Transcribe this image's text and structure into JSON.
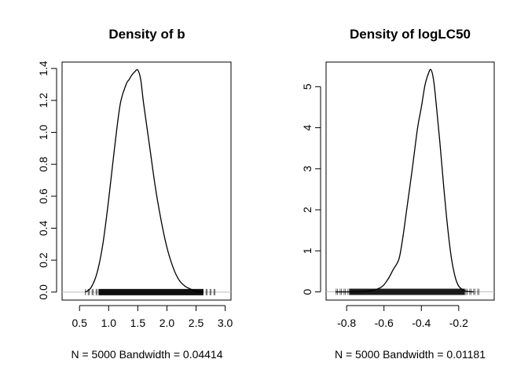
{
  "chart_data": [
    {
      "type": "line",
      "title": "Density of b",
      "subtitle": "N = 5000   Bandwidth = 0.04414",
      "xlim": [
        0.2,
        3.1
      ],
      "ylim": [
        -0.05,
        1.44
      ],
      "xticks": [
        0.5,
        1.0,
        1.5,
        2.0,
        2.5,
        3.0
      ],
      "xtick_labels": [
        "0.5",
        "1.0",
        "1.5",
        "2.0",
        "2.5",
        "3.0"
      ],
      "yticks": [
        0.0,
        0.2,
        0.4,
        0.6,
        0.8,
        1.0,
        1.2,
        1.4
      ],
      "ytick_labels": [
        "0.0",
        "0.2",
        "0.4",
        "0.6",
        "0.8",
        "1.0",
        "1.2",
        "1.4"
      ],
      "rug_range": [
        0.6,
        2.85
      ],
      "baseline_color": "#bebebe",
      "series": [
        {
          "x": [
            0.6,
            0.7,
            0.8,
            0.9,
            1.0,
            1.1,
            1.2,
            1.3,
            1.35,
            1.4,
            1.45,
            1.5,
            1.55,
            1.6,
            1.7,
            1.8,
            1.9,
            2.0,
            2.1,
            2.2,
            2.3,
            2.4,
            2.5,
            2.6
          ],
          "y": [
            0.0,
            0.03,
            0.12,
            0.3,
            0.58,
            0.9,
            1.18,
            1.3,
            1.33,
            1.36,
            1.38,
            1.39,
            1.33,
            1.18,
            0.92,
            0.66,
            0.45,
            0.28,
            0.16,
            0.08,
            0.04,
            0.02,
            0.005,
            0.0
          ]
        }
      ]
    },
    {
      "type": "line",
      "title": "Density of logLC50",
      "subtitle": "N = 5000   Bandwidth = 0.01181",
      "xlim": [
        -0.91,
        -0.01
      ],
      "ylim": [
        -0.2,
        5.6
      ],
      "xticks": [
        -0.8,
        -0.6,
        -0.4,
        -0.2
      ],
      "xtick_labels": [
        "-0.8",
        "-0.6",
        "-0.4",
        "-0.2"
      ],
      "yticks": [
        0,
        1,
        2,
        3,
        4,
        5
      ],
      "ytick_labels": [
        "0",
        "1",
        "2",
        "3",
        "4",
        "5"
      ],
      "rug_range": [
        -0.86,
        -0.09
      ],
      "baseline_color": "#bebebe",
      "series": [
        {
          "x": [
            -0.86,
            -0.7,
            -0.62,
            -0.58,
            -0.55,
            -0.52,
            -0.5,
            -0.48,
            -0.45,
            -0.42,
            -0.4,
            -0.38,
            -0.36,
            -0.35,
            -0.34,
            -0.33,
            -0.32,
            -0.3,
            -0.28,
            -0.26,
            -0.24,
            -0.22,
            -0.2,
            -0.17,
            -0.15,
            -0.12
          ],
          "y": [
            0.0,
            0.01,
            0.1,
            0.3,
            0.55,
            0.8,
            1.3,
            1.95,
            2.95,
            4.0,
            4.5,
            5.05,
            5.35,
            5.42,
            5.3,
            5.0,
            4.55,
            3.6,
            2.55,
            1.6,
            0.85,
            0.38,
            0.14,
            0.03,
            0.01,
            0.0
          ]
        }
      ]
    }
  ]
}
